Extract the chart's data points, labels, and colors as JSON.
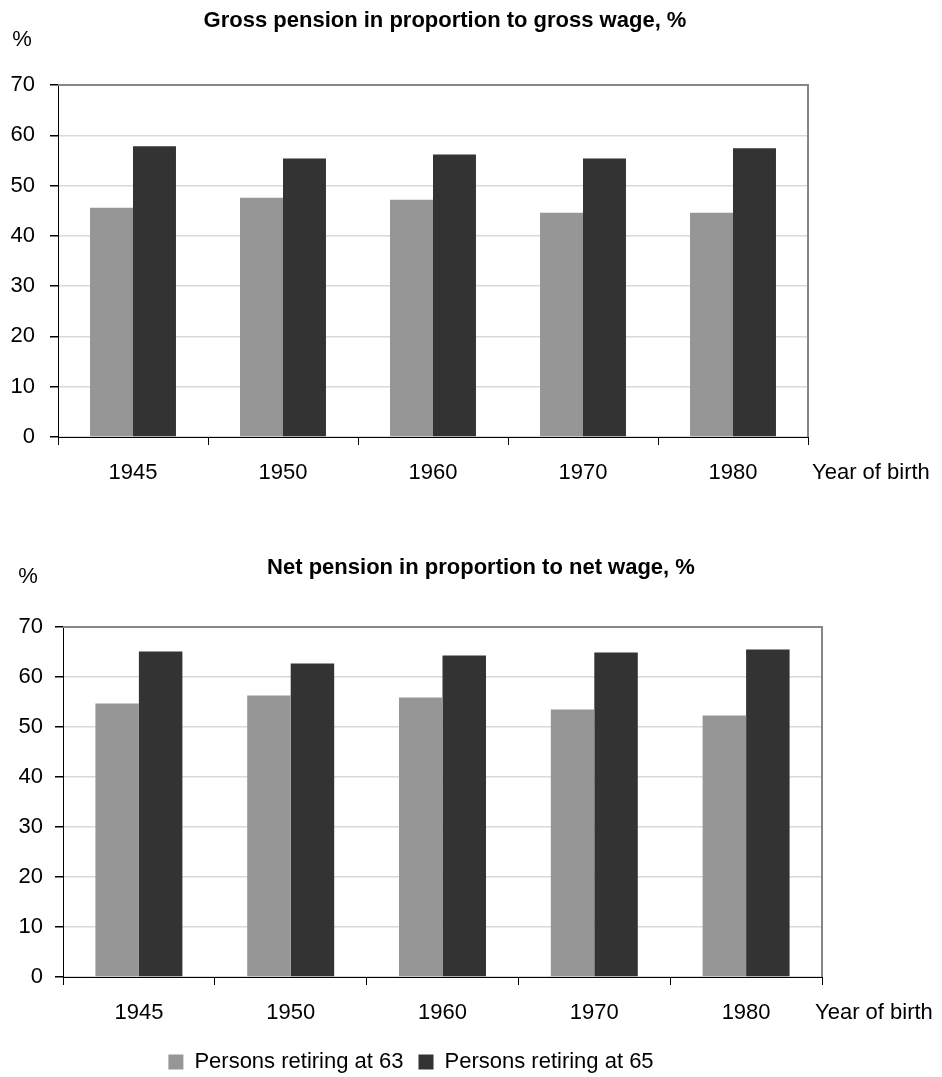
{
  "chart_data": [
    {
      "type": "bar",
      "title": "Gross pension in proportion to gross wage, %",
      "xlabel": "Year of birth",
      "ylabel": "%",
      "categories": [
        "1945",
        "1950",
        "1960",
        "1970",
        "1980"
      ],
      "series": [
        {
          "color": "#969696",
          "values": [
            45.6,
            47.6,
            47.2,
            44.6,
            44.6
          ]
        },
        {
          "color": "#333333",
          "values": [
            57.8,
            55.4,
            56.2,
            55.4,
            57.4
          ]
        }
      ],
      "ylim": [
        0,
        70
      ],
      "yticks": [
        0,
        10,
        20,
        30,
        40,
        50,
        60,
        70
      ],
      "grid": "y"
    },
    {
      "type": "bar",
      "title": "Net pension in proportion to net wage, %",
      "xlabel": "Year of birth",
      "ylabel": "%",
      "categories": [
        "1945",
        "1950",
        "1960",
        "1970",
        "1980"
      ],
      "series": [
        {
          "name": "Persons retiring at 63",
          "color": "#969696",
          "values": [
            54.7,
            56.3,
            55.9,
            53.5,
            52.3
          ]
        },
        {
          "name": "Persons retiring at 65",
          "color": "#333333",
          "values": [
            65.1,
            62.7,
            64.3,
            64.9,
            65.5
          ]
        }
      ],
      "ylim": [
        0,
        70
      ],
      "yticks": [
        0,
        10,
        20,
        30,
        40,
        50,
        60,
        70
      ],
      "grid": "y",
      "legend": "bottom"
    }
  ]
}
